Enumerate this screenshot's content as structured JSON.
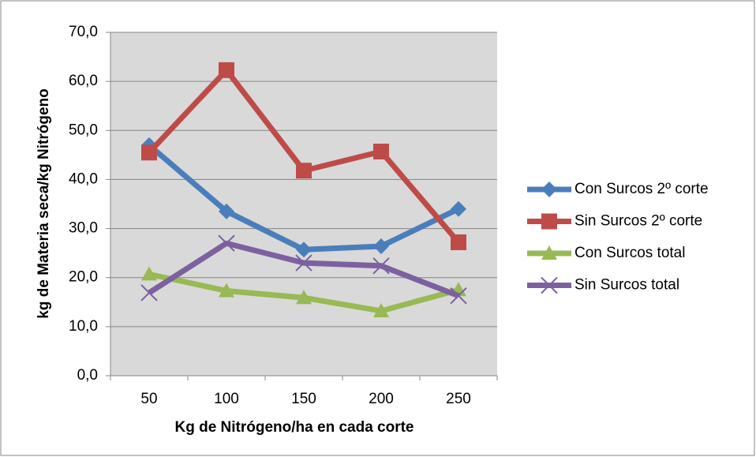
{
  "chart_data": {
    "type": "line",
    "x_label": "Kg de Nitrógeno/ha en cada corte",
    "y_label": "kg de Materia seca/kg Nitrógeno",
    "categories": [
      "50",
      "100",
      "150",
      "200",
      "250"
    ],
    "series": [
      {
        "name": "Con Surcos 2º corte",
        "color": "#4a7ebb",
        "marker": "diamond",
        "values": [
          47.0,
          33.5,
          25.7,
          26.4,
          34.0
        ]
      },
      {
        "name": "Sin Surcos 2º corte",
        "color": "#be4b48",
        "marker": "square",
        "values": [
          45.5,
          62.3,
          41.8,
          45.7,
          27.2
        ]
      },
      {
        "name": "Con Surcos total",
        "color": "#98b954",
        "marker": "triangle",
        "values": [
          20.7,
          17.3,
          15.9,
          13.2,
          17.5
        ]
      },
      {
        "name": "Sin Surcos total",
        "color": "#7d60a0",
        "marker": "x",
        "values": [
          16.9,
          27.0,
          23.0,
          22.4,
          16.3
        ]
      }
    ],
    "ylim": [
      0,
      70
    ],
    "yticks": [
      {
        "value": 0,
        "label": "0,0"
      },
      {
        "value": 10,
        "label": "10,0"
      },
      {
        "value": 20,
        "label": "20,0"
      },
      {
        "value": 30,
        "label": "30,0"
      },
      {
        "value": 40,
        "label": "40,0"
      },
      {
        "value": 50,
        "label": "50,0"
      },
      {
        "value": 60,
        "label": "60,0"
      },
      {
        "value": 70,
        "label": "70,0"
      }
    ],
    "grid": true,
    "legend": "right"
  }
}
